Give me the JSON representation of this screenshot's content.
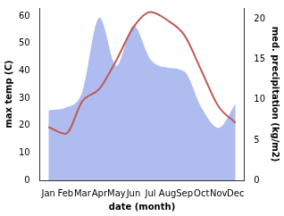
{
  "chart_data": {
    "type": "line",
    "xlabel": "date (month)",
    "ylabel": "max temp (C)",
    "y2label": "med. precipitation (kg/m2)",
    "categories": [
      "Jan",
      "Feb",
      "Mar",
      "Apr",
      "May",
      "Jun",
      "Jul",
      "Aug",
      "Sep",
      "Oct",
      "Nov",
      "Dec"
    ],
    "series": [
      {
        "type": "line",
        "color": "#c05a5a",
        "axis": "y",
        "values": [
          19.5,
          17,
          29,
          33.5,
          44,
          56,
          61.5,
          58.5,
          53,
          40,
          27,
          21
        ]
      },
      {
        "type": "area",
        "color": "#aebcf0",
        "axis": "y2",
        "values": [
          8.7,
          9,
          11,
          20.2,
          14.2,
          19.2,
          15,
          14,
          13.5,
          9,
          6.5,
          9.5
        ]
      }
    ],
    "ylim": [
      0,
      63
    ],
    "yticks": [
      0,
      10,
      20,
      30,
      40,
      50,
      60
    ],
    "y2lim": [
      0,
      21.4
    ],
    "y2ticks": [
      0,
      5,
      10,
      15,
      20
    ],
    "grid": false
  }
}
